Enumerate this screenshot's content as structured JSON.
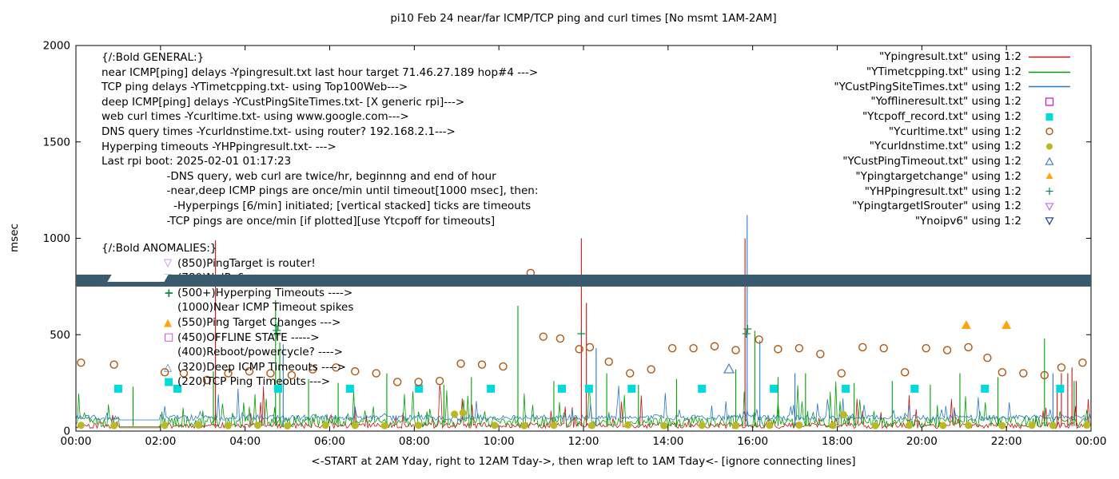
{
  "title": "pi10 Feb 24  near/far ICMP/TCP ping and curl times [No msmt 1AM-2AM]",
  "ylabel": "msec",
  "xlabel": "<-START at 2AM Yday, right to 12AM Tday->, then wrap left to 1AM Tday<- [ignore connecting lines]",
  "general_block": {
    "lines": [
      "{/:Bold GENERAL:}",
      "near ICMP[ping] delays -Ypingresult.txt last hour target 71.46.27.189 hop#4 --->",
      "TCP ping delays -YTimetcpping.txt- using Top100Web--->",
      "deep ICMP[ping] delays -YCustPingSiteTimes.txt- [X generic rpi]--->",
      "web curl times -Ycurltime.txt- using www.google.com--->",
      "DNS query times -Ycurldnstime.txt- using router? 192.168.2.1--->",
      "Hyperping timeouts -YHPpingresult.txt- --->",
      "Last rpi boot: 2025-02-01 01:17:23",
      "                   -DNS query, web curl are twice/hr, beginnng and end of hour",
      "                   -near,deep ICMP pings are once/min until timeout[1000 msec], then:",
      "                     -Hyperpings [6/min] initiated; [vertical stacked] ticks are timeouts",
      "                   -TCP pings are once/min [if plotted][use Ytcpoff for timeouts]"
    ]
  },
  "anomalies_block": {
    "header": "{/:Bold ANOMALIES:}",
    "items": [
      {
        "icon": "triangle-down-open",
        "color": "#c678e6",
        "text": "(850)PingTarget is router!"
      },
      {
        "icon": "triangle-down-open",
        "color": "#2b4a8f",
        "text": "(780)NoIPv6 ---->"
      },
      {
        "icon": "plus",
        "color": "#0f8a40",
        "text": "(500+)Hyperping Timeouts ---->"
      },
      {
        "icon": "",
        "color": "",
        "text": "(1000)Near ICMP Timeout spikes"
      },
      {
        "icon": "triangle-up-fill",
        "color": "#ffa510",
        "text": "(550)Ping Target Changes --->"
      },
      {
        "icon": "square-open",
        "color": "#c520c5",
        "text": "(450)OFFLINE STATE ----->"
      },
      {
        "icon": "",
        "color": "",
        "text": "(400)Reboot/powercycle? ---->"
      },
      {
        "icon": "triangle-up-open",
        "color": "#4f86c6",
        "text": "(320)Deep ICMP Timeouts ---->"
      },
      {
        "icon": "square-fill",
        "color": "#00dada",
        "text": "(220)TCP Ping Timeouts --->"
      }
    ]
  },
  "legend": {
    "items": [
      {
        "label": "\"Ypingresult.txt\" using 1:2",
        "sample": "line",
        "color": "#cc1111"
      },
      {
        "label": "\"YTimetcpping.txt\" using 1:2",
        "sample": "line",
        "color": "#00a000"
      },
      {
        "label": "\"YCustPingSiteTimes.txt\" using 1:2",
        "sample": "line",
        "color": "#2878c8"
      },
      {
        "label": "\"Yofflineresult.txt\" using 1:2",
        "sample": "square-open",
        "color": "#c520c5"
      },
      {
        "label": "\"Ytcpoff_record.txt\" using 1:2",
        "sample": "square-fill",
        "color": "#00dada"
      },
      {
        "label": "\"Ycurltime.txt\" using 1:2",
        "sample": "circle-open",
        "color": "#b0560e"
      },
      {
        "label": "\"Ycurldnstime.txt\" using 1:2",
        "sample": "circle-fill",
        "color": "#b9b921"
      },
      {
        "label": "\"YCustPingTimeout.txt\" using 1:2",
        "sample": "triangle-up-open",
        "color": "#4f86c6"
      },
      {
        "label": "\"Ypingtargetchange\" using 1:2",
        "sample": "triangle-up-fill",
        "color": "#ffa510"
      },
      {
        "label": "\"YHPpingresult.txt\" using 1:2",
        "sample": "plus",
        "color": "#0f8a40"
      },
      {
        "label": "\"YpingtargetISrouter\" using 1:2",
        "sample": "triangle-down-open",
        "color": "#c678e6"
      },
      {
        "label": "\"Ynoipv6\" using 1:2",
        "sample": "triangle-down-open",
        "color": "#2b4a8f"
      }
    ]
  },
  "chart_data": {
    "type": "line",
    "x_unit": "hour-of-day",
    "xlim": [
      0,
      24
    ],
    "ylim": [
      0,
      2000
    ],
    "x_ticks": {
      "hours": [
        0,
        2,
        4,
        6,
        8,
        10,
        12,
        14,
        16,
        18,
        20,
        22,
        24
      ],
      "labels": [
        "00:00",
        "02:00",
        "04:00",
        "06:00",
        "08:00",
        "10:00",
        "12:00",
        "14:00",
        "16:00",
        "18:00",
        "20:00",
        "22:00",
        "00:00"
      ]
    },
    "y_ticks": {
      "values": [
        0,
        500,
        1000,
        1500,
        2000
      ],
      "labels": [
        "0",
        "500",
        "1000",
        "1500",
        "2000"
      ]
    },
    "noipv6_band": {
      "value": 780,
      "half_height": 32,
      "color": "#3b5a6e",
      "gap_hours": [
        0.8,
        2.15
      ]
    },
    "series": [
      {
        "name": "Ypingresult",
        "color": "#cc1111",
        "model": {
          "base": 14,
          "jitter": 30,
          "spike_prob": 0.1,
          "spike_max": 210,
          "seed": 11
        }
      },
      {
        "name": "YTimetcpping",
        "color": "#00a000",
        "model": {
          "base": 20,
          "jitter": 55,
          "spike_prob": 0.13,
          "spike_max": 260,
          "seed": 22
        }
      },
      {
        "name": "YCustPingSiteTimes",
        "color": "#2878c8",
        "model": {
          "base": 55,
          "jitter": 30,
          "spike_prob": 0.06,
          "spike_max": 200,
          "seed": 33
        }
      }
    ],
    "spikes": {
      "Ypingresult": [
        [
          3.3,
          990
        ],
        [
          11.95,
          1000
        ],
        [
          12.07,
          665
        ],
        [
          15.82,
          1000
        ],
        [
          23.2,
          230
        ],
        [
          23.3,
          300
        ],
        [
          23.45,
          300
        ],
        [
          23.55,
          330
        ],
        [
          23.65,
          260
        ]
      ],
      "YTimetcpping": [
        [
          1.35,
          230
        ],
        [
          3.25,
          310
        ],
        [
          4.72,
          680
        ],
        [
          4.82,
          460
        ],
        [
          5.5,
          270
        ],
        [
          6.2,
          250
        ],
        [
          7.35,
          300
        ],
        [
          8.7,
          240
        ],
        [
          9.35,
          280
        ],
        [
          10.45,
          650
        ],
        [
          11.3,
          260
        ],
        [
          12.55,
          300
        ],
        [
          13.3,
          240
        ],
        [
          14.2,
          270
        ],
        [
          15.6,
          320
        ],
        [
          16.05,
          520
        ],
        [
          16.6,
          280
        ],
        [
          17.25,
          300
        ],
        [
          18.4,
          250
        ],
        [
          19.3,
          260
        ],
        [
          20.2,
          240
        ],
        [
          20.9,
          300
        ],
        [
          21.8,
          280
        ],
        [
          22.9,
          480
        ],
        [
          23.6,
          260
        ]
      ],
      "YCustPingSiteTimes": [
        [
          4.9,
          450
        ],
        [
          12.3,
          430
        ],
        [
          15.87,
          1120
        ],
        [
          16.17,
          470
        ],
        [
          17.0,
          300
        ],
        [
          23.1,
          300
        ]
      ]
    },
    "markers": {
      "tcp_timeouts_squares": {
        "color": "#00dada",
        "value": 220,
        "hours": [
          1.0,
          2.4,
          4.78,
          6.48,
          8.11,
          9.81,
          11.49,
          12.13,
          13.14,
          14.8,
          16.5,
          18.2,
          19.83,
          21.49,
          23.27
        ]
      },
      "curl_times_circles": {
        "color": "#b0560e",
        "points": [
          [
            0.12,
            355
          ],
          [
            0.9,
            345
          ],
          [
            2.1,
            305
          ],
          [
            2.55,
            300
          ],
          [
            3.1,
            265
          ],
          [
            3.6,
            300
          ],
          [
            4.1,
            310
          ],
          [
            4.6,
            300
          ],
          [
            5.1,
            290
          ],
          [
            5.6,
            320
          ],
          [
            6.15,
            330
          ],
          [
            6.6,
            310
          ],
          [
            7.1,
            300
          ],
          [
            7.6,
            255
          ],
          [
            8.1,
            255
          ],
          [
            8.6,
            260
          ],
          [
            9.1,
            350
          ],
          [
            9.6,
            345
          ],
          [
            10.1,
            335
          ],
          [
            10.75,
            820
          ],
          [
            11.05,
            490
          ],
          [
            11.45,
            480
          ],
          [
            11.9,
            425
          ],
          [
            12.15,
            435
          ],
          [
            12.6,
            360
          ],
          [
            13.1,
            300
          ],
          [
            13.6,
            320
          ],
          [
            14.1,
            430
          ],
          [
            14.6,
            430
          ],
          [
            15.1,
            440
          ],
          [
            15.6,
            420
          ],
          [
            16.15,
            475
          ],
          [
            16.6,
            425
          ],
          [
            17.1,
            430
          ],
          [
            17.6,
            400
          ],
          [
            18.1,
            300
          ],
          [
            18.6,
            435
          ],
          [
            19.1,
            430
          ],
          [
            19.6,
            305
          ],
          [
            20.1,
            430
          ],
          [
            20.6,
            420
          ],
          [
            21.1,
            435
          ],
          [
            21.55,
            380
          ],
          [
            21.9,
            305
          ],
          [
            22.4,
            300
          ],
          [
            22.9,
            290
          ],
          [
            23.3,
            330
          ],
          [
            23.8,
            355
          ]
        ]
      },
      "dns_times_circles": {
        "color": "#b9b921",
        "points": [
          [
            0.12,
            30
          ],
          [
            0.9,
            28
          ],
          [
            2.1,
            29
          ],
          [
            2.9,
            31
          ],
          [
            3.6,
            28
          ],
          [
            4.3,
            30
          ],
          [
            5.0,
            27
          ],
          [
            5.9,
            30
          ],
          [
            6.6,
            29
          ],
          [
            7.3,
            28
          ],
          [
            8.1,
            30
          ],
          [
            8.95,
            88
          ],
          [
            9.15,
            95
          ],
          [
            9.9,
            30
          ],
          [
            10.6,
            28
          ],
          [
            11.3,
            30
          ],
          [
            12.2,
            29
          ],
          [
            13.05,
            32
          ],
          [
            13.9,
            28
          ],
          [
            14.8,
            30
          ],
          [
            15.6,
            28
          ],
          [
            16.4,
            30
          ],
          [
            17.1,
            31
          ],
          [
            17.9,
            29
          ],
          [
            18.15,
            85
          ],
          [
            18.9,
            28
          ],
          [
            19.7,
            30
          ],
          [
            20.5,
            29
          ],
          [
            21.1,
            30
          ],
          [
            21.9,
            28
          ],
          [
            22.6,
            30
          ],
          [
            23.1,
            29
          ],
          [
            23.9,
            31
          ]
        ]
      },
      "deep_icmp_timeout_triangles": {
        "color": "#4f86c6",
        "points": [
          [
            15.44,
            322
          ]
        ]
      },
      "ping_target_change_triangles": {
        "color": "#ffa510",
        "points": [
          [
            21.05,
            550
          ],
          [
            22.0,
            550
          ]
        ]
      },
      "hyperping_plus": {
        "color": "#0f8a40",
        "points": [
          [
            4.75,
            500
          ],
          [
            4.75,
            522
          ],
          [
            4.78,
            545
          ],
          [
            11.95,
            505
          ],
          [
            15.85,
            505
          ],
          [
            15.88,
            530
          ]
        ]
      }
    }
  }
}
